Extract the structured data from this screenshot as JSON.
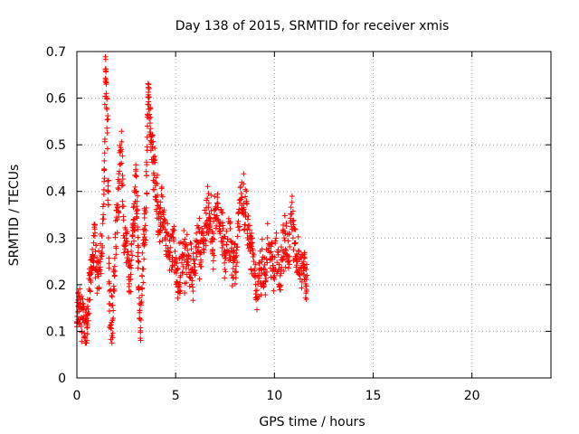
{
  "chart_data": {
    "type": "scatter",
    "title": "Day 138 of 2015, SRMTID for receiver xmis",
    "xlabel": "GPS time / hours",
    "ylabel": "SRMTID / TECUs",
    "xlim": [
      0,
      24
    ],
    "ylim": [
      0,
      0.7
    ],
    "xticks": [
      "0",
      "5",
      "10",
      "15",
      "20"
    ],
    "xtick_values": [
      0,
      5,
      10,
      15,
      20
    ],
    "yticks": [
      "0",
      "0.1",
      "0.2",
      "0.3",
      "0.4",
      "0.5",
      "0.6",
      "0.7"
    ],
    "ytick_values": [
      0,
      0.1,
      0.2,
      0.3,
      0.4,
      0.5,
      0.6,
      0.7
    ],
    "grid": true,
    "marker": "+",
    "series": [
      {
        "name": "SRMTID",
        "color": "#ff0000",
        "anchors": [
          [
            0.0,
            0.12
          ],
          [
            0.15,
            0.16
          ],
          [
            0.3,
            0.13
          ],
          [
            0.45,
            0.09
          ],
          [
            0.6,
            0.17
          ],
          [
            0.75,
            0.25
          ],
          [
            0.9,
            0.29
          ],
          [
            1.05,
            0.22
          ],
          [
            1.2,
            0.25
          ],
          [
            1.35,
            0.35
          ],
          [
            1.45,
            0.68
          ],
          [
            1.55,
            0.52
          ],
          [
            1.65,
            0.16
          ],
          [
            1.8,
            0.13
          ],
          [
            1.95,
            0.3
          ],
          [
            2.1,
            0.38
          ],
          [
            2.25,
            0.5
          ],
          [
            2.4,
            0.3
          ],
          [
            2.55,
            0.28
          ],
          [
            2.7,
            0.2
          ],
          [
            2.85,
            0.33
          ],
          [
            3.0,
            0.42
          ],
          [
            3.1,
            0.26
          ],
          [
            3.2,
            0.12
          ],
          [
            3.35,
            0.26
          ],
          [
            3.5,
            0.36
          ],
          [
            3.6,
            0.64
          ],
          [
            3.7,
            0.55
          ],
          [
            3.85,
            0.47
          ],
          [
            4.0,
            0.42
          ],
          [
            4.15,
            0.33
          ],
          [
            4.3,
            0.37
          ],
          [
            4.5,
            0.29
          ],
          [
            4.7,
            0.26
          ],
          [
            4.9,
            0.29
          ],
          [
            5.1,
            0.2
          ],
          [
            5.3,
            0.26
          ],
          [
            5.5,
            0.24
          ],
          [
            5.7,
            0.26
          ],
          [
            5.9,
            0.22
          ],
          [
            6.1,
            0.3
          ],
          [
            6.3,
            0.28
          ],
          [
            6.5,
            0.33
          ],
          [
            6.7,
            0.36
          ],
          [
            6.9,
            0.28
          ],
          [
            7.1,
            0.38
          ],
          [
            7.3,
            0.33
          ],
          [
            7.5,
            0.26
          ],
          [
            7.7,
            0.3
          ],
          [
            7.9,
            0.23
          ],
          [
            8.1,
            0.27
          ],
          [
            8.3,
            0.4
          ],
          [
            8.5,
            0.36
          ],
          [
            8.7,
            0.3
          ],
          [
            8.9,
            0.26
          ],
          [
            9.1,
            0.18
          ],
          [
            9.3,
            0.24
          ],
          [
            9.5,
            0.22
          ],
          [
            9.7,
            0.3
          ],
          [
            9.9,
            0.24
          ],
          [
            10.1,
            0.27
          ],
          [
            10.3,
            0.22
          ],
          [
            10.5,
            0.31
          ],
          [
            10.7,
            0.27
          ],
          [
            10.9,
            0.34
          ],
          [
            11.1,
            0.28
          ],
          [
            11.3,
            0.24
          ],
          [
            11.5,
            0.23
          ],
          [
            11.65,
            0.22
          ]
        ]
      }
    ]
  }
}
